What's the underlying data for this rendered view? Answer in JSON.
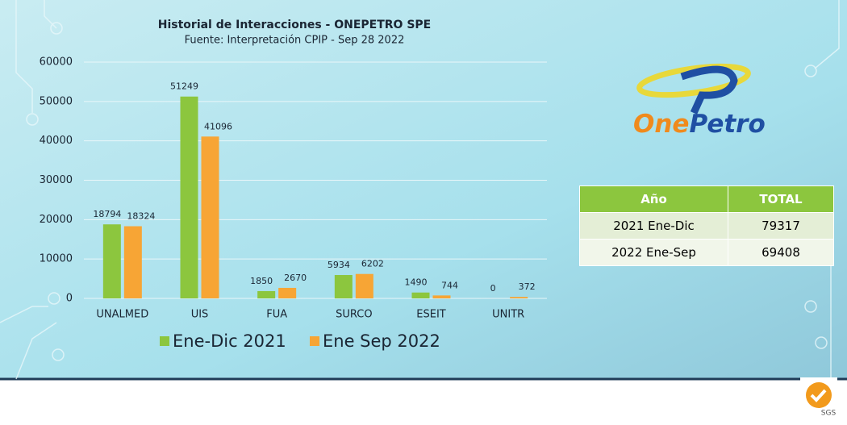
{
  "chart_data": {
    "type": "bar",
    "title": "Historial de Interacciones - ONEPETRO SPE",
    "subtitle": "Fuente: Interpretación  CPIP - Sep 28 2022",
    "categories": [
      "UNALMED",
      "UIS",
      "FUA",
      "SURCO",
      "ESEIT",
      "UNITR"
    ],
    "series": [
      {
        "name": "Ene-Dic 2021",
        "color": "#8cc63e",
        "values": [
          18794,
          51249,
          1850,
          5934,
          1490,
          0
        ]
      },
      {
        "name": "Ene Sep 2022",
        "color": "#f7a535",
        "values": [
          18324,
          41096,
          2670,
          6202,
          744,
          372
        ]
      }
    ],
    "ylim": [
      0,
      60000
    ],
    "yticks": [
      0,
      10000,
      20000,
      30000,
      40000,
      50000,
      60000
    ],
    "grid": true
  },
  "logo": {
    "text_one": "One",
    "text_petro": "Petro"
  },
  "table": {
    "header": [
      "Año",
      "TOTAL"
    ],
    "rows": [
      [
        "2021 Ene-Dic",
        "79317"
      ],
      [
        "2022 Ene-Sep",
        "69408"
      ]
    ]
  },
  "badge": {
    "text": "SGS"
  }
}
